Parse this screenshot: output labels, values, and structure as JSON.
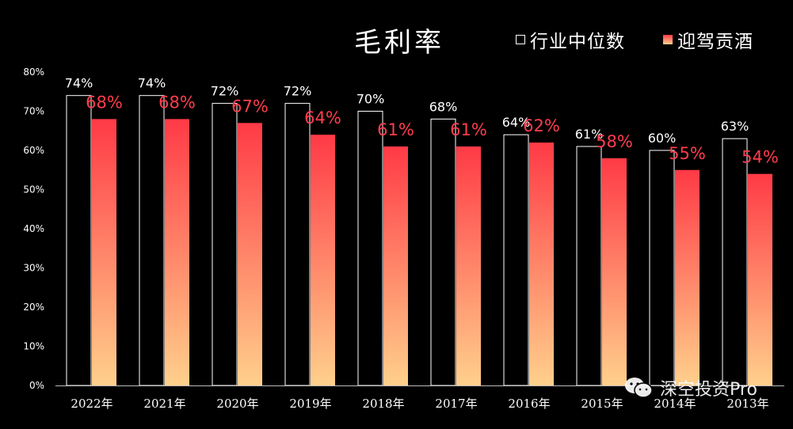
{
  "header": {
    "title": "毛利率",
    "legend_industry": "行业中位数",
    "legend_company": "迎驾贡酒"
  },
  "watermark": {
    "text": "深空投资Pro",
    "icon": "wechat-icon"
  },
  "colors": {
    "background": "#000000",
    "industry_outline": "#ffffff",
    "company_top": "#ff3a46",
    "company_bottom": "#ffd08c",
    "company_label": "#ff3d4d"
  },
  "chart_data": {
    "type": "bar",
    "title": "毛利率",
    "categories": [
      "2022年",
      "2021年",
      "2020年",
      "2019年",
      "2018年",
      "2017年",
      "2016年",
      "2015年",
      "2014年",
      "2013年"
    ],
    "series": [
      {
        "name": "行业中位数",
        "values": [
          74,
          74,
          72,
          72,
          70,
          68,
          64,
          61,
          60,
          63
        ],
        "labels": [
          "74%",
          "74%",
          "72%",
          "72%",
          "70%",
          "68%",
          "64%",
          "61%",
          "60%",
          "63%"
        ]
      },
      {
        "name": "迎驾贡酒",
        "values": [
          68,
          68,
          67,
          64,
          61,
          61,
          62,
          58,
          55,
          54
        ],
        "labels": [
          "68%",
          "68%",
          "67%",
          "64%",
          "61%",
          "61%",
          "62%",
          "58%",
          "55%",
          "54%"
        ]
      }
    ],
    "ylim": [
      0,
      80
    ],
    "yticks": [
      "0%",
      "10%",
      "20%",
      "30%",
      "40%",
      "50%",
      "60%",
      "70%",
      "80%"
    ],
    "grid": false,
    "legend_position": "top-right"
  }
}
